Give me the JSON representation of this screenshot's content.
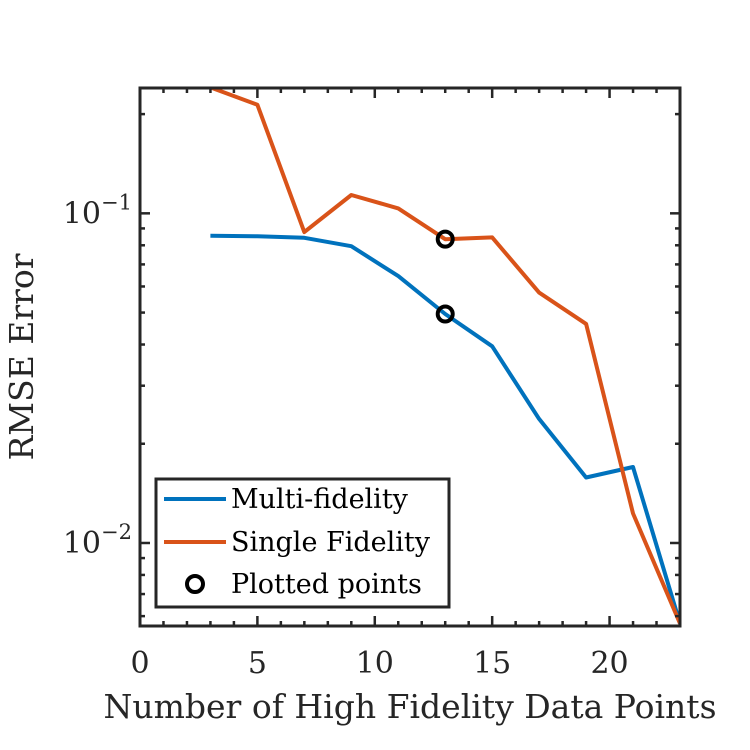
{
  "chart_data": {
    "type": "line",
    "xlabel": "Number of High Fidelity Data Points",
    "ylabel": "RMSE Error",
    "xlim": [
      0,
      23
    ],
    "ylim": [
      0.0056,
      0.24
    ],
    "yscale": "log",
    "grid": false,
    "legend_position": "bottom-left",
    "x_ticks": [
      {
        "value": 0,
        "label": "0"
      },
      {
        "value": 5,
        "label": "5"
      },
      {
        "value": 10,
        "label": "10"
      },
      {
        "value": 15,
        "label": "15"
      },
      {
        "value": 20,
        "label": "20"
      }
    ],
    "y_ticks": [
      {
        "value": 0.1,
        "base": "10",
        "exp": "−1"
      },
      {
        "value": 0.01,
        "base": "10",
        "exp": "−2"
      }
    ],
    "series": [
      {
        "name": "Multi-fidelity",
        "color": "#0072BD",
        "x": [
          3,
          5,
          7,
          9,
          11,
          13,
          15,
          17,
          19,
          21,
          23
        ],
        "y": [
          0.0855,
          0.0852,
          0.0843,
          0.0795,
          0.0645,
          0.0495,
          0.0395,
          0.0238,
          0.0158,
          0.017,
          0.0057
        ]
      },
      {
        "name": "Single Fidelity",
        "color": "#D95319",
        "x": [
          3,
          5,
          7,
          9,
          11,
          13,
          15,
          17,
          19,
          21,
          23
        ],
        "y": [
          0.241,
          0.2135,
          0.0877,
          0.1137,
          0.1035,
          0.0835,
          0.0845,
          0.0575,
          0.0462,
          0.0123,
          0.0057
        ]
      }
    ],
    "markers": {
      "name": "Plotted points",
      "color": "#000000",
      "points": [
        {
          "x": 13,
          "y": 0.0835
        },
        {
          "x": 13,
          "y": 0.0495
        }
      ]
    }
  }
}
